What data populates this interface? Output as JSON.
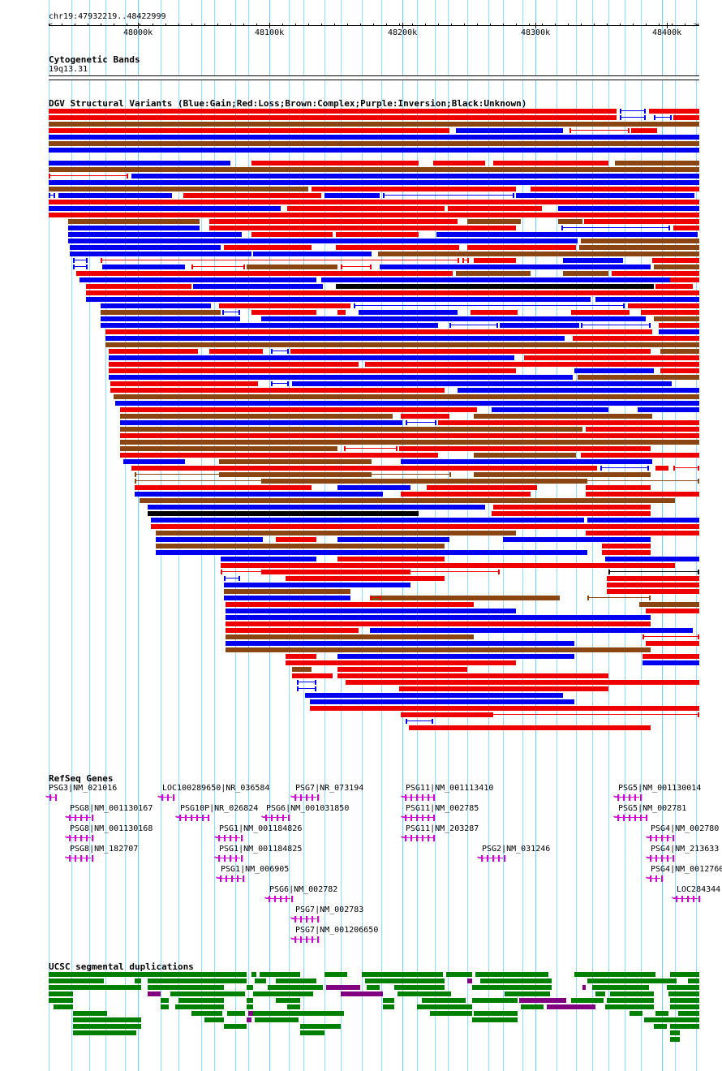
{
  "location": "chr19:47932219..48422999",
  "ruler_ticks": [
    "48000k",
    "48100k",
    "48200k",
    "48300k",
    "48400k"
  ],
  "tracks": {
    "cytoband": {
      "title": "Cytogenetic Bands",
      "band": "19q13.31"
    },
    "dgv": {
      "title": "DGV Structural Variants (Blue:Gain;Red:Loss;Brown:Complex;Purple:Inversion;Black:Unknown)"
    },
    "refseq": {
      "title": "RefSeq Genes"
    },
    "segdup": {
      "title": "UCSC segmental duplications"
    }
  },
  "genes": [
    "PSG3|NM_021016",
    "LOC100289650|NR_036584",
    "PSG7|NR_073194",
    "PSG11|NM_001113410",
    "PSG5|NM_001130014",
    "PSG8|NM_001130167",
    "PSG10P|NR_026824",
    "PSG6|NM_001031850",
    "PSG11|NM_002785",
    "PSG5|NM_002781",
    "PSG8|NM_001130168",
    "PSG1|NM_001184826",
    "PSG11|NM_203287",
    "PSG4|NM_002780",
    "PSG8|NM_182707",
    "PSG1|NM_001184825",
    "PSG2|NM_031246",
    "PSG4|NM_213633",
    "PSG1|NM_006905",
    "PSG4|NM_0012760",
    "PSG6|NM_002782",
    "LOC284344",
    "PSG7|NM_002783",
    "PSG7|NM_001206650"
  ],
  "colors": {
    "gain": "#0000ee",
    "loss": "#ee0000",
    "complex": "#8b4513",
    "inversion": "#800080",
    "unknown": "#000000",
    "gene": "#d800d8",
    "segdup_green": "#008000",
    "segdup_purple": "#800080",
    "grid": "#aad4ee"
  }
}
